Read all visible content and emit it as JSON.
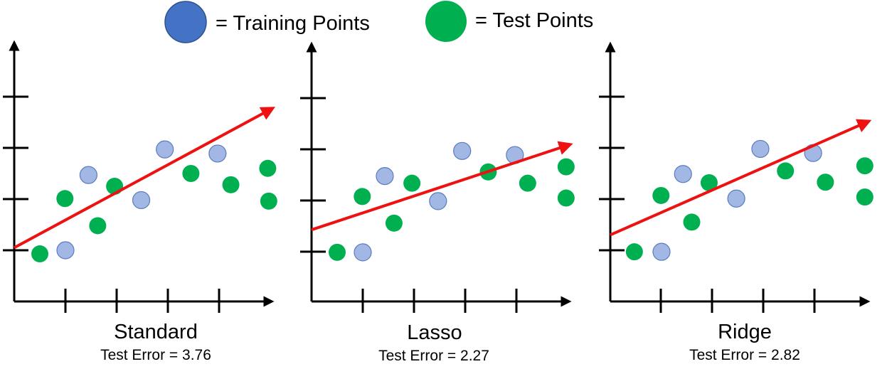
{
  "legend": {
    "items": [
      {
        "label": "= Training Points",
        "color": "#4472c4"
      },
      {
        "label": "= Test Points",
        "color": "#00b050"
      }
    ]
  },
  "colors": {
    "training_small": "#a2b7e3",
    "training_stroke": "#5a7cbf",
    "test": "#00b050",
    "fit_line": "#ee1111",
    "axis": "#000000"
  },
  "chart_data": [
    {
      "type": "scatter",
      "title": "Standard",
      "subtitle": "Test Error = 3.76",
      "xlim": [
        0,
        5
      ],
      "ylim": [
        0,
        5
      ],
      "training": [
        [
          1,
          1
        ],
        [
          1.45,
          2.47
        ],
        [
          2.48,
          1.98
        ],
        [
          2.94,
          2.97
        ],
        [
          3.97,
          2.89
        ]
      ],
      "test": [
        [
          0.5,
          0.93
        ],
        [
          0.99,
          2.01
        ],
        [
          1.63,
          1.48
        ],
        [
          1.96,
          2.25
        ],
        [
          3.45,
          2.5
        ],
        [
          4.23,
          2.28
        ],
        [
          4.95,
          2.6
        ],
        [
          4.97,
          1.96
        ]
      ],
      "fit_line": {
        "x": [
          0,
          5
        ],
        "y": [
          1.05,
          3.75
        ]
      }
    },
    {
      "type": "scatter",
      "title": "Lasso",
      "subtitle": "Test Error = 2.27",
      "xlim": [
        0,
        5
      ],
      "ylim": [
        0,
        5
      ],
      "training": [
        [
          1,
          0.96
        ],
        [
          1.43,
          2.45
        ],
        [
          2.47,
          1.96
        ],
        [
          2.94,
          2.94
        ],
        [
          3.97,
          2.86
        ]
      ],
      "test": [
        [
          0.5,
          0.96
        ],
        [
          0.99,
          2.05
        ],
        [
          1.61,
          1.53
        ],
        [
          1.96,
          2.31
        ],
        [
          3.45,
          2.53
        ],
        [
          4.22,
          2.31
        ],
        [
          4.97,
          2.63
        ],
        [
          4.97,
          2.02
        ]
      ],
      "fit_line": {
        "x": [
          0,
          5
        ],
        "y": [
          1.4,
          3.05
        ]
      }
    },
    {
      "type": "scatter",
      "title": "Ridge",
      "subtitle": "Test Error = 2.82",
      "xlim": [
        0,
        5
      ],
      "ylim": [
        0,
        5
      ],
      "training": [
        [
          1,
          0.97
        ],
        [
          1.42,
          2.49
        ],
        [
          2.46,
          2.01
        ],
        [
          2.93,
          2.98
        ],
        [
          3.96,
          2.9
        ]
      ],
      "test": [
        [
          0.47,
          0.97
        ],
        [
          0.99,
          2.07
        ],
        [
          1.59,
          1.55
        ],
        [
          1.93,
          2.32
        ],
        [
          3.42,
          2.55
        ],
        [
          4.2,
          2.33
        ],
        [
          4.97,
          2.65
        ],
        [
          4.97,
          2.04
        ]
      ],
      "fit_line": {
        "x": [
          0,
          5
        ],
        "y": [
          1.3,
          3.5
        ]
      }
    }
  ]
}
